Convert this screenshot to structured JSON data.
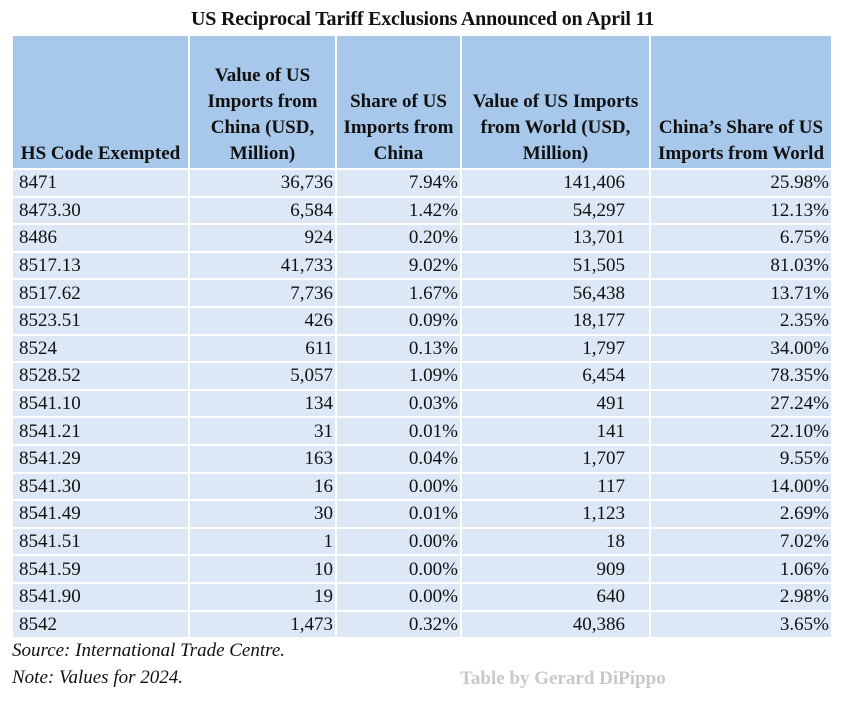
{
  "chart_data": {
    "type": "table",
    "title": "US Reciprocal Tariff Exclusions Announced on April 11",
    "columns": [
      "HS Code Exempted",
      "Value of US Imports from China (USD, Million)",
      "Share of US Imports from China",
      "Value of US Imports from World (USD, Million)",
      "China’s Share of US Imports from World"
    ],
    "rows": [
      [
        "8471",
        "36,736",
        "7.94%",
        "141,406",
        "25.98%"
      ],
      [
        "8473.30",
        "6,584",
        "1.42%",
        "54,297",
        "12.13%"
      ],
      [
        "8486",
        "924",
        "0.20%",
        "13,701",
        "6.75%"
      ],
      [
        "8517.13",
        "41,733",
        "9.02%",
        "51,505",
        "81.03%"
      ],
      [
        "8517.62",
        "7,736",
        "1.67%",
        "56,438",
        "13.71%"
      ],
      [
        "8523.51",
        "426",
        "0.09%",
        "18,177",
        "2.35%"
      ],
      [
        "8524",
        "611",
        "0.13%",
        "1,797",
        "34.00%"
      ],
      [
        "8528.52",
        "5,057",
        "1.09%",
        "6,454",
        "78.35%"
      ],
      [
        "8541.10",
        "134",
        "0.03%",
        "491",
        "27.24%"
      ],
      [
        "8541.21",
        "31",
        "0.01%",
        "141",
        "22.10%"
      ],
      [
        "8541.29",
        "163",
        "0.04%",
        "1,707",
        "9.55%"
      ],
      [
        "8541.30",
        "16",
        "0.00%",
        "117",
        "14.00%"
      ],
      [
        "8541.49",
        "30",
        "0.01%",
        "1,123",
        "2.69%"
      ],
      [
        "8541.51",
        "1",
        "0.00%",
        "18",
        "7.02%"
      ],
      [
        "8541.59",
        "10",
        "0.00%",
        "909",
        "1.06%"
      ],
      [
        "8541.90",
        "19",
        "0.00%",
        "640",
        "2.98%"
      ],
      [
        "8542",
        "1,473",
        "0.32%",
        "40,386",
        "3.65%"
      ]
    ],
    "source": "Source: International Trade Centre.",
    "note": "Note: Values for 2024.",
    "credit": "Table by Gerard DiPippo"
  },
  "colors": {
    "header_bg": "#a7c8ea",
    "row_bg": "#dce8f6",
    "credit": "#c8c8c8"
  }
}
